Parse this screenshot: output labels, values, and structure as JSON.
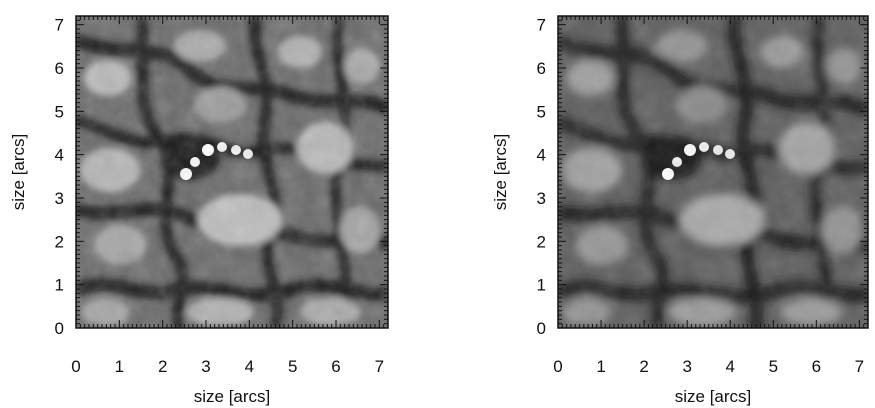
{
  "panels": [
    {
      "id": "left",
      "xlabel": "size [arcs]",
      "ylabel": "size [arcs]",
      "x_ticks": [
        "0",
        "1",
        "2",
        "3",
        "4",
        "5",
        "6",
        "7"
      ],
      "y_ticks": [
        "0",
        "1",
        "2",
        "3",
        "4",
        "5",
        "6",
        "7"
      ],
      "axis_range": [
        0,
        7.2
      ],
      "image_description": "grayscale solar granulation with bright points near center"
    },
    {
      "id": "right",
      "xlabel": "size [arcs]",
      "ylabel": "size [arcs]",
      "x_ticks": [
        "0",
        "1",
        "2",
        "3",
        "4",
        "5",
        "6",
        "7"
      ],
      "y_ticks": [
        "0",
        "1",
        "2",
        "3",
        "4",
        "5",
        "6",
        "7"
      ],
      "axis_range": [
        0,
        7.2
      ],
      "image_description": "grayscale solar granulation (slightly smoother) with bright points near center"
    }
  ],
  "colors": {
    "frame": "#111111",
    "granule_light": "#bdbdbd",
    "lane_dark": "#1a1a1a"
  }
}
